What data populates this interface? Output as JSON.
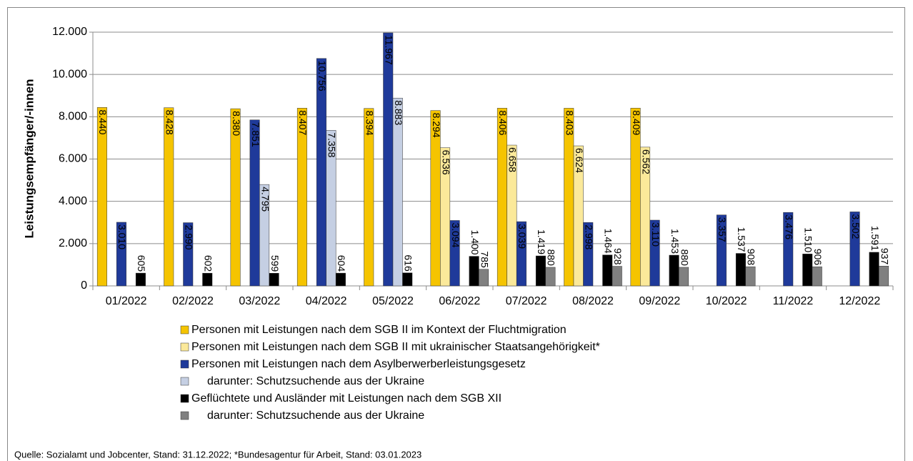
{
  "chart_data": {
    "type": "bar",
    "ylabel": "Leistungsempfänger/-innen",
    "categories": [
      "01/2022",
      "02/2022",
      "03/2022",
      "04/2022",
      "05/2022",
      "06/2022",
      "07/2022",
      "08/2022",
      "09/2022",
      "10/2022",
      "11/2022",
      "12/2022"
    ],
    "series": [
      {
        "name": "Personen mit Leistungen nach dem SGB II im Kontext der Fluchtmigration",
        "color": "#f5c400",
        "values": [
          8440,
          8428,
          8380,
          8407,
          8394,
          8294,
          8406,
          8403,
          8409,
          null,
          null,
          null
        ],
        "value_labels": [
          "8.440",
          "8.428",
          "8.380",
          "8.407",
          "8.394",
          "8.294",
          "8.406",
          "8.403",
          "8.409",
          null,
          null,
          null
        ]
      },
      {
        "name": "Personen mit Leistungen nach dem SGB II mit ukrainischer Staatsangehörigkeit*",
        "color": "#fbe99a",
        "values": [
          null,
          null,
          null,
          null,
          null,
          6536,
          6658,
          6624,
          6562,
          null,
          null,
          null
        ],
        "value_labels": [
          null,
          null,
          null,
          null,
          null,
          "6.536",
          "6.658",
          "6.624",
          "6.562",
          null,
          null,
          null
        ]
      },
      {
        "name": "Personen mit Leistungen nach dem Asylberwerberleistungsgesetz",
        "color": "#1f3a9a",
        "values": [
          3010,
          2990,
          7851,
          10756,
          11967,
          3094,
          3039,
          2998,
          3110,
          3357,
          3476,
          3502
        ],
        "value_labels": [
          "3.010",
          "2.990",
          "7.851",
          "10.756",
          "11.967",
          "3.094",
          "3.039",
          "2.998",
          "3.110",
          "3.357",
          "3.476",
          "3.502"
        ]
      },
      {
        "name": "darunter: Schutzsuchende aus der Ukraine",
        "color": "#c5cfe3",
        "values": [
          null,
          null,
          4795,
          7358,
          8883,
          null,
          null,
          null,
          null,
          null,
          null,
          null
        ],
        "value_labels": [
          null,
          null,
          "4.795",
          "7.358",
          "8.883",
          null,
          null,
          null,
          null,
          null,
          null,
          null
        ]
      },
      {
        "name": "Geflüchtete und Ausländer mit Leistungen nach dem SGB XII",
        "color": "#000000",
        "values": [
          605,
          602,
          599,
          604,
          616,
          1400,
          1419,
          1464,
          1453,
          1537,
          1510,
          1591
        ],
        "value_labels": [
          "605",
          "602",
          "599",
          "604",
          "616",
          "1.400",
          "1.419",
          "1.464",
          "1.453",
          "1.537",
          "1.510",
          "1.591"
        ]
      },
      {
        "name": "darunter: Schutzsuchende aus der Ukraine",
        "color": "#808080",
        "values": [
          null,
          null,
          null,
          null,
          null,
          785,
          880,
          928,
          880,
          908,
          906,
          937
        ],
        "value_labels": [
          null,
          null,
          null,
          null,
          null,
          "785",
          "880",
          "928",
          "880",
          "908",
          "906",
          "937"
        ]
      }
    ],
    "ylim": [
      0,
      12000
    ],
    "yticks": [
      0,
      {
        "value": 2000,
        "label": "2.000"
      },
      {
        "value": 4000,
        "label": "4.000"
      },
      {
        "value": 6000,
        "label": "6.000"
      },
      {
        "value": 8000,
        "label": "8.000"
      },
      {
        "value": 10000,
        "label": "10.000"
      },
      {
        "value": 12000,
        "label": "12.000"
      }
    ],
    "grid": true,
    "source": "Quelle: Sozialamt und Jobcenter, Stand: 31.12.2022;  *Bundesagentur für Arbeit, Stand: 03.01.2023"
  }
}
